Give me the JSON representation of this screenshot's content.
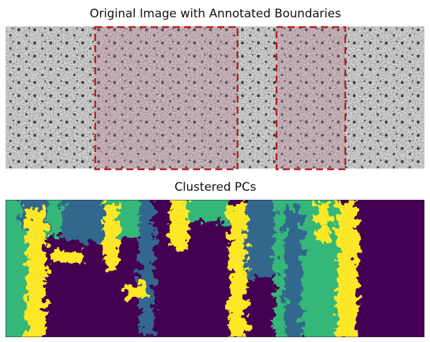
{
  "panels": [
    {
      "title": "Original Image with Annotated Boundaries"
    },
    {
      "title": "Clustered PCs"
    }
  ]
}
